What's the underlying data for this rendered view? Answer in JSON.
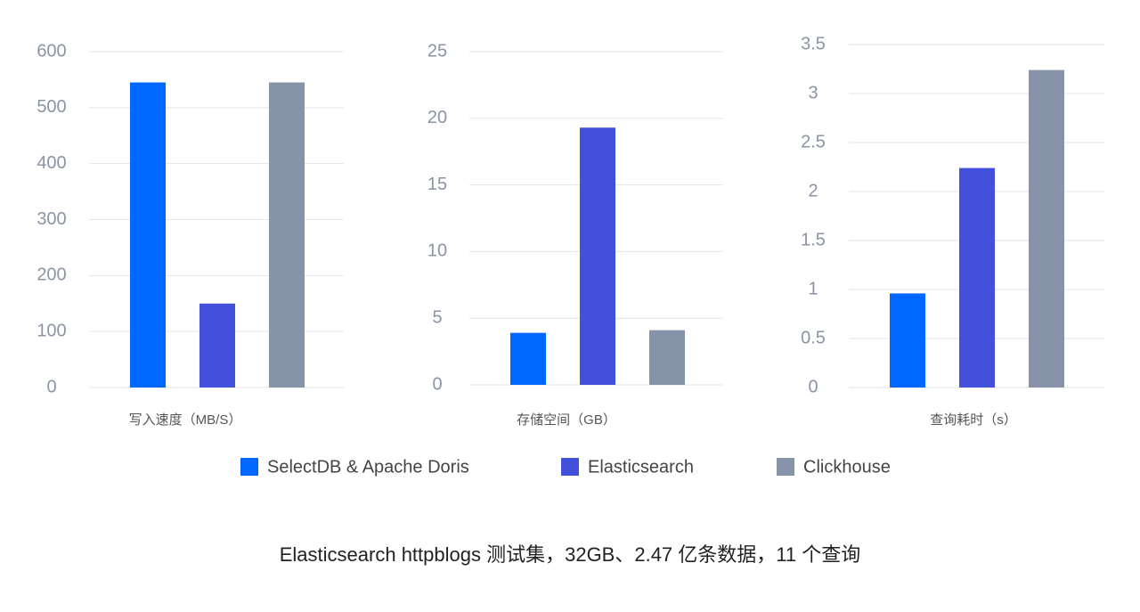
{
  "chart_data": [
    {
      "type": "bar",
      "xlabel": "写入速度（MB/S）",
      "values": [
        545,
        150,
        545
      ],
      "ylim": [
        0,
        600
      ],
      "yticks": [
        0,
        100,
        200,
        300,
        400,
        500,
        600
      ],
      "grid": true
    },
    {
      "type": "bar",
      "xlabel": "存储空间（GB）",
      "values": [
        3.9,
        19.3,
        4.1
      ],
      "ylim": [
        0,
        25
      ],
      "yticks": [
        0,
        5,
        10,
        15,
        20,
        25
      ],
      "grid": true
    },
    {
      "type": "bar",
      "xlabel": "查询耗时（s）",
      "values": [
        0.96,
        2.24,
        3.24
      ],
      "ylim": [
        0,
        3.5
      ],
      "yticks": [
        0,
        0.5,
        1,
        1.5,
        2,
        2.5,
        3,
        3.5
      ],
      "grid": true
    }
  ],
  "legend": [
    {
      "name": "SelectDB & Apache Doris",
      "color": "#0068ff"
    },
    {
      "name": "Elasticsearch",
      "color": "#4350dc"
    },
    {
      "name": "Clickhouse",
      "color": "#8693a8"
    }
  ],
  "caption": "Elasticsearch httpblogs 测试集，32GB、2.47 亿条数据，11 个查询"
}
